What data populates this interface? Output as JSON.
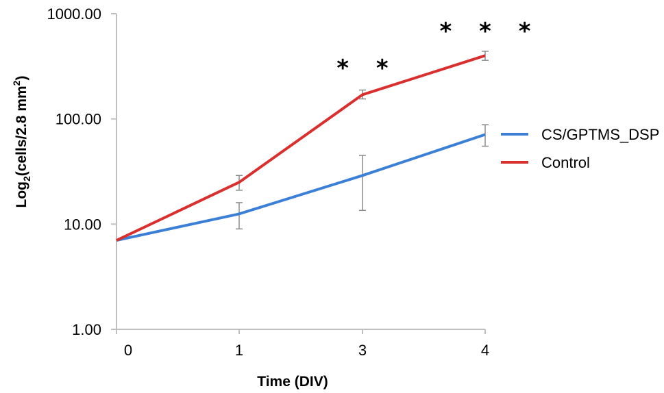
{
  "chart_data": {
    "type": "line",
    "xlabel": "Time (DIV)",
    "ylabel": {
      "prefix": "Log",
      "subscript": "2",
      "main": "(cells/2.8 mm",
      "superscript": "2",
      "suffix": ")"
    },
    "y_scale": "log",
    "ylim": [
      1,
      1000
    ],
    "y_ticks": [
      "1.00",
      "10.00",
      "100.00",
      "1000.00"
    ],
    "categories": [
      "0",
      "1",
      "3",
      "4"
    ],
    "grid": false,
    "legend_position": "right",
    "series": [
      {
        "name": "CS/GPTMS_DSP",
        "color": "#3b7fd6",
        "values": [
          7,
          12.5,
          29,
          71
        ],
        "error_low": [
          null,
          9,
          13.5,
          55
        ],
        "error_high": [
          null,
          16,
          45,
          88
        ]
      },
      {
        "name": "Control",
        "color": "#d92f2f",
        "values": [
          7,
          25,
          170,
          400
        ],
        "error_low": [
          null,
          21,
          155,
          360
        ],
        "error_high": [
          null,
          29,
          188,
          440
        ]
      }
    ],
    "annotations": [
      {
        "category": "3",
        "text": "* *"
      },
      {
        "category": "4",
        "text": "* * *"
      }
    ],
    "error_bar_color": "#8a8a8a",
    "axis_color": "#bfbfbf"
  }
}
